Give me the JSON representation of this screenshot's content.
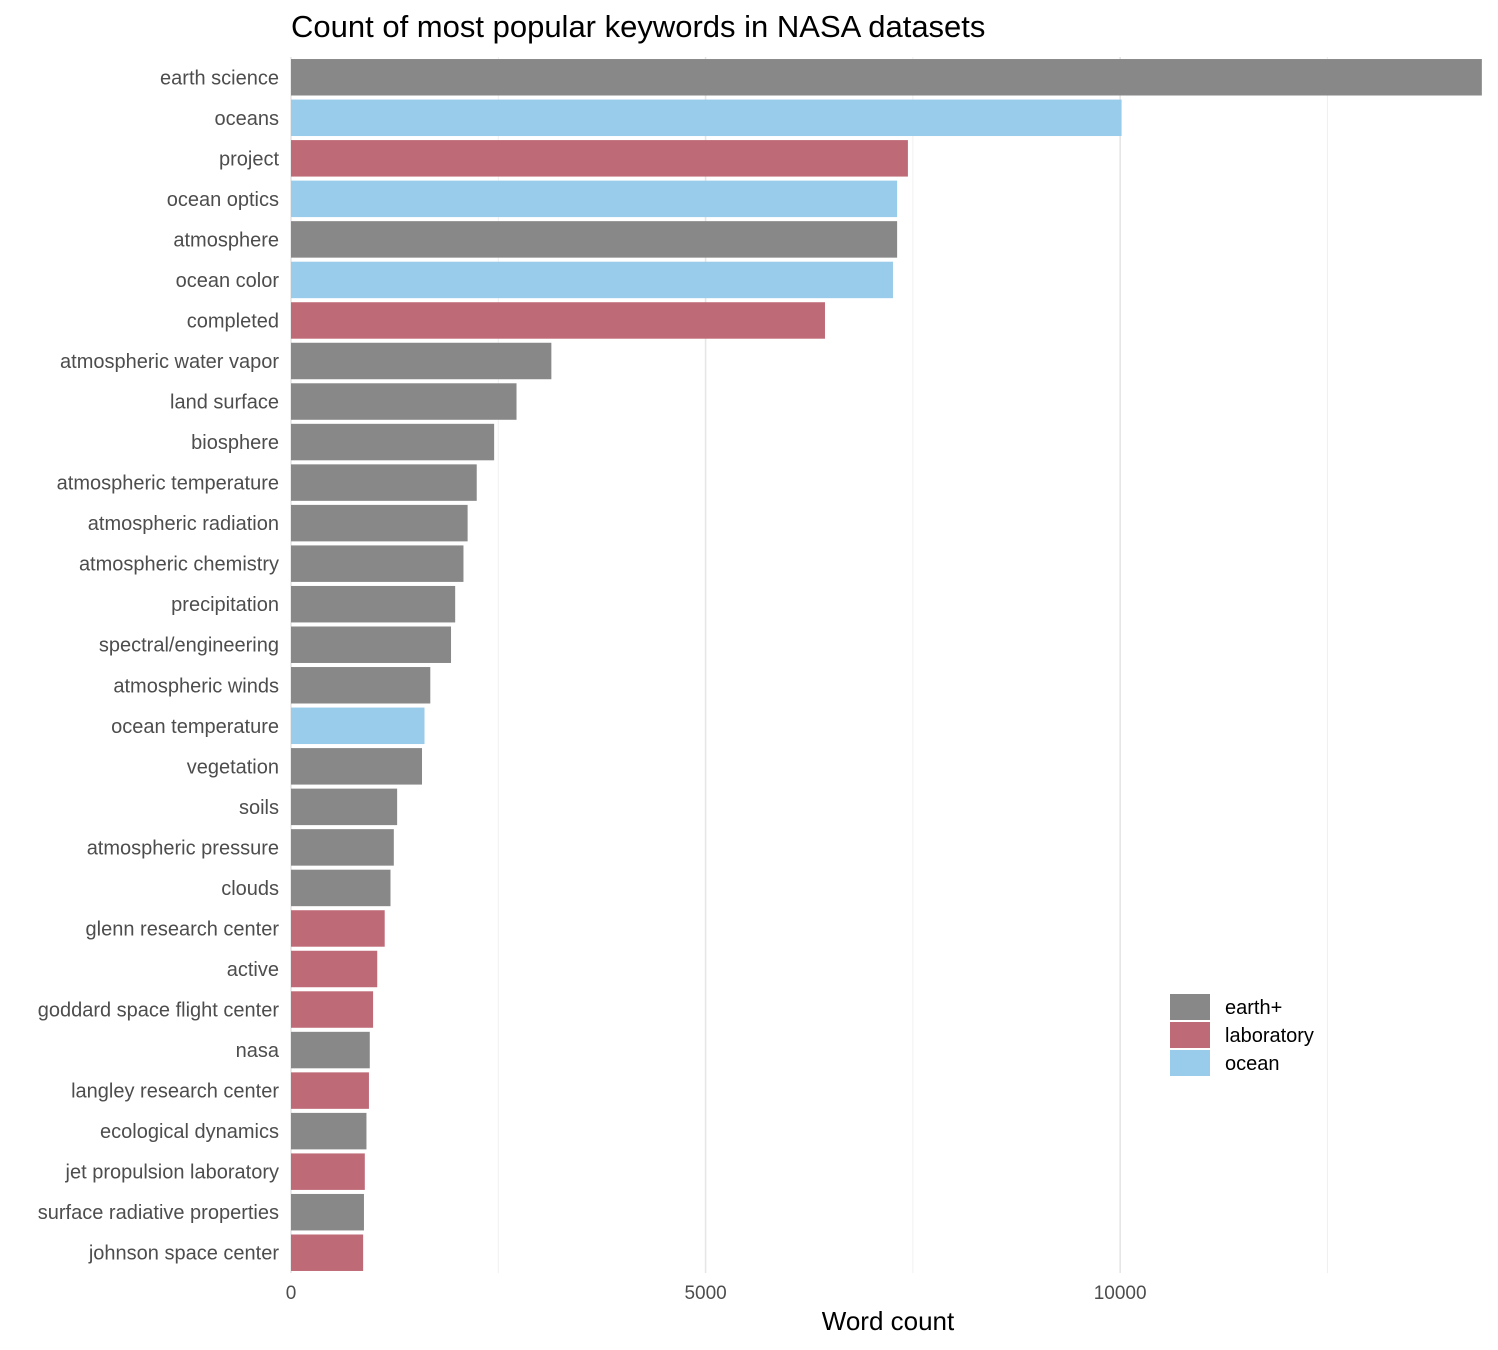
{
  "chart_data": {
    "type": "bar",
    "orientation": "horizontal",
    "title": "Count of most popular keywords in NASA datasets",
    "xlabel": "Word count",
    "ylabel": "",
    "xlim": [
      0,
      14400
    ],
    "xticks": [
      0,
      5000,
      10000
    ],
    "xtick_labels": [
      "0",
      "5000",
      "10000"
    ],
    "grid": true,
    "legend_position": "bottom-right",
    "colors": {
      "earth+": "#888888",
      "laboratory": "#bf6a77",
      "ocean": "#99cbea"
    },
    "legend": [
      "earth+",
      "laboratory",
      "ocean"
    ],
    "bars": [
      {
        "category": "earth science",
        "value": 14362,
        "group": "earth+"
      },
      {
        "category": "oceans",
        "value": 10017,
        "group": "ocean"
      },
      {
        "category": "project",
        "value": 7440,
        "group": "laboratory"
      },
      {
        "category": "ocean optics",
        "value": 7310,
        "group": "ocean"
      },
      {
        "category": "atmosphere",
        "value": 7310,
        "group": "earth+"
      },
      {
        "category": "ocean color",
        "value": 7260,
        "group": "ocean"
      },
      {
        "category": "completed",
        "value": 6440,
        "group": "laboratory"
      },
      {
        "category": "atmospheric water vapor",
        "value": 3140,
        "group": "earth+"
      },
      {
        "category": "land surface",
        "value": 2720,
        "group": "earth+"
      },
      {
        "category": "biosphere",
        "value": 2450,
        "group": "earth+"
      },
      {
        "category": "atmospheric temperature",
        "value": 2240,
        "group": "earth+"
      },
      {
        "category": "atmospheric radiation",
        "value": 2130,
        "group": "earth+"
      },
      {
        "category": "atmospheric chemistry",
        "value": 2080,
        "group": "earth+"
      },
      {
        "category": "precipitation",
        "value": 1980,
        "group": "earth+"
      },
      {
        "category": "spectral/engineering",
        "value": 1930,
        "group": "earth+"
      },
      {
        "category": "atmospheric winds",
        "value": 1680,
        "group": "earth+"
      },
      {
        "category": "ocean temperature",
        "value": 1610,
        "group": "ocean"
      },
      {
        "category": "vegetation",
        "value": 1580,
        "group": "earth+"
      },
      {
        "category": "soils",
        "value": 1280,
        "group": "earth+"
      },
      {
        "category": "atmospheric pressure",
        "value": 1240,
        "group": "earth+"
      },
      {
        "category": "clouds",
        "value": 1200,
        "group": "earth+"
      },
      {
        "category": "glenn research center",
        "value": 1130,
        "group": "laboratory"
      },
      {
        "category": "active",
        "value": 1040,
        "group": "laboratory"
      },
      {
        "category": "goddard space flight center",
        "value": 990,
        "group": "laboratory"
      },
      {
        "category": "nasa",
        "value": 950,
        "group": "earth+"
      },
      {
        "category": "langley research center",
        "value": 940,
        "group": "laboratory"
      },
      {
        "category": "ecological dynamics",
        "value": 910,
        "group": "earth+"
      },
      {
        "category": "jet propulsion laboratory",
        "value": 890,
        "group": "laboratory"
      },
      {
        "category": "surface radiative properties",
        "value": 880,
        "group": "earth+"
      },
      {
        "category": "johnson space center",
        "value": 870,
        "group": "laboratory"
      }
    ]
  }
}
